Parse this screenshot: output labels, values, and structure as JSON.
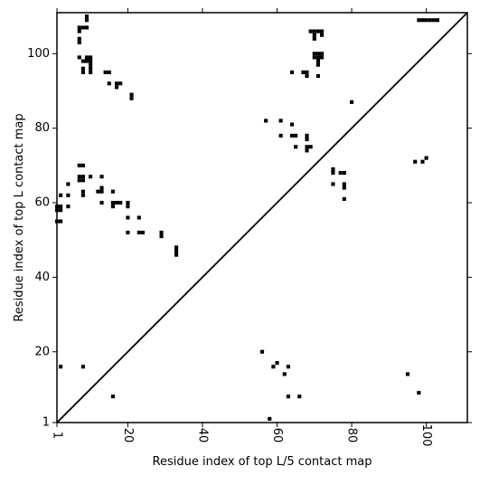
{
  "chart_data": {
    "type": "heatmap",
    "xlabel": "Residue index of top L/5 contact map",
    "ylabel": "Residue index of top L contact map",
    "xlim": [
      1,
      111
    ],
    "ylim": [
      1,
      111
    ],
    "x_ticks": [
      1,
      20,
      40,
      60,
      80,
      100
    ],
    "y_ticks": [
      1,
      20,
      40,
      60,
      80,
      100
    ],
    "diagonal": true,
    "grid": false,
    "colors": {
      "contact": "#000000",
      "background": "#ffffff"
    },
    "contacts_top_L": [
      [
        1,
        55
      ],
      [
        2,
        55
      ],
      [
        1,
        58
      ],
      [
        2,
        58
      ],
      [
        1,
        59
      ],
      [
        2,
        59
      ],
      [
        2,
        62
      ],
      [
        4,
        59
      ],
      [
        4,
        62
      ],
      [
        4,
        65
      ],
      [
        7,
        66
      ],
      [
        8,
        66
      ],
      [
        7,
        67
      ],
      [
        8,
        67
      ],
      [
        7,
        70
      ],
      [
        8,
        70
      ],
      [
        8,
        62
      ],
      [
        8,
        63
      ],
      [
        7,
        99
      ],
      [
        8,
        98
      ],
      [
        9,
        98
      ],
      [
        10,
        98
      ],
      [
        9,
        99
      ],
      [
        10,
        99
      ],
      [
        8,
        95
      ],
      [
        8,
        96
      ],
      [
        10,
        95
      ],
      [
        10,
        96
      ],
      [
        10,
        97
      ],
      [
        7,
        103
      ],
      [
        7,
        104
      ],
      [
        7,
        106
      ],
      [
        7,
        107
      ],
      [
        8,
        107
      ],
      [
        9,
        107
      ],
      [
        9,
        109
      ],
      [
        9,
        110
      ],
      [
        10,
        67
      ],
      [
        12,
        63
      ],
      [
        13,
        63
      ],
      [
        13,
        64
      ],
      [
        13,
        67
      ],
      [
        13,
        60
      ],
      [
        14,
        95
      ],
      [
        15,
        95
      ],
      [
        15,
        92
      ],
      [
        17,
        91
      ],
      [
        17,
        92
      ],
      [
        18,
        92
      ],
      [
        16,
        59
      ],
      [
        16,
        60
      ],
      [
        17,
        60
      ],
      [
        18,
        60
      ],
      [
        16,
        63
      ],
      [
        20,
        59
      ],
      [
        20,
        60
      ],
      [
        20,
        56
      ],
      [
        20,
        52
      ],
      [
        21,
        88
      ],
      [
        21,
        89
      ],
      [
        23,
        56
      ],
      [
        23,
        52
      ],
      [
        24,
        52
      ],
      [
        29,
        51
      ],
      [
        29,
        52
      ],
      [
        33,
        46
      ],
      [
        33,
        47
      ],
      [
        33,
        48
      ],
      [
        57,
        82
      ],
      [
        61,
        82
      ],
      [
        61,
        78
      ],
      [
        64,
        95
      ],
      [
        64,
        81
      ],
      [
        64,
        78
      ],
      [
        65,
        78
      ],
      [
        65,
        75
      ],
      [
        67,
        95
      ],
      [
        68,
        95
      ],
      [
        68,
        94
      ],
      [
        68,
        78
      ],
      [
        68,
        77
      ],
      [
        68,
        75
      ],
      [
        68,
        74
      ],
      [
        69,
        75
      ],
      [
        69,
        106
      ],
      [
        70,
        106
      ],
      [
        70,
        105
      ],
      [
        70,
        104
      ],
      [
        71,
        106
      ],
      [
        72,
        106
      ],
      [
        72,
        105
      ],
      [
        70,
        100
      ],
      [
        71,
        100
      ],
      [
        72,
        100
      ],
      [
        70,
        99
      ],
      [
        71,
        99
      ],
      [
        72,
        99
      ],
      [
        71,
        98
      ],
      [
        71,
        97
      ],
      [
        71,
        94
      ],
      [
        75,
        69
      ],
      [
        75,
        68
      ],
      [
        75,
        65
      ],
      [
        77,
        68
      ],
      [
        78,
        68
      ],
      [
        78,
        65
      ],
      [
        78,
        64
      ],
      [
        78,
        61
      ],
      [
        80,
        87
      ],
      [
        97,
        71
      ],
      [
        99,
        71
      ],
      [
        100,
        72
      ],
      [
        98,
        109
      ],
      [
        99,
        109
      ],
      [
        100,
        109
      ],
      [
        101,
        109
      ],
      [
        102,
        109
      ],
      [
        103,
        109
      ]
    ],
    "contacts_top_L5": [
      [
        2,
        16
      ],
      [
        8,
        16
      ],
      [
        16,
        8
      ],
      [
        56,
        20
      ],
      [
        58,
        2
      ],
      [
        59,
        16
      ],
      [
        60,
        17
      ],
      [
        62,
        14
      ],
      [
        63,
        16
      ],
      [
        63,
        8
      ],
      [
        66,
        8
      ],
      [
        95,
        14
      ],
      [
        98,
        9
      ]
    ]
  }
}
